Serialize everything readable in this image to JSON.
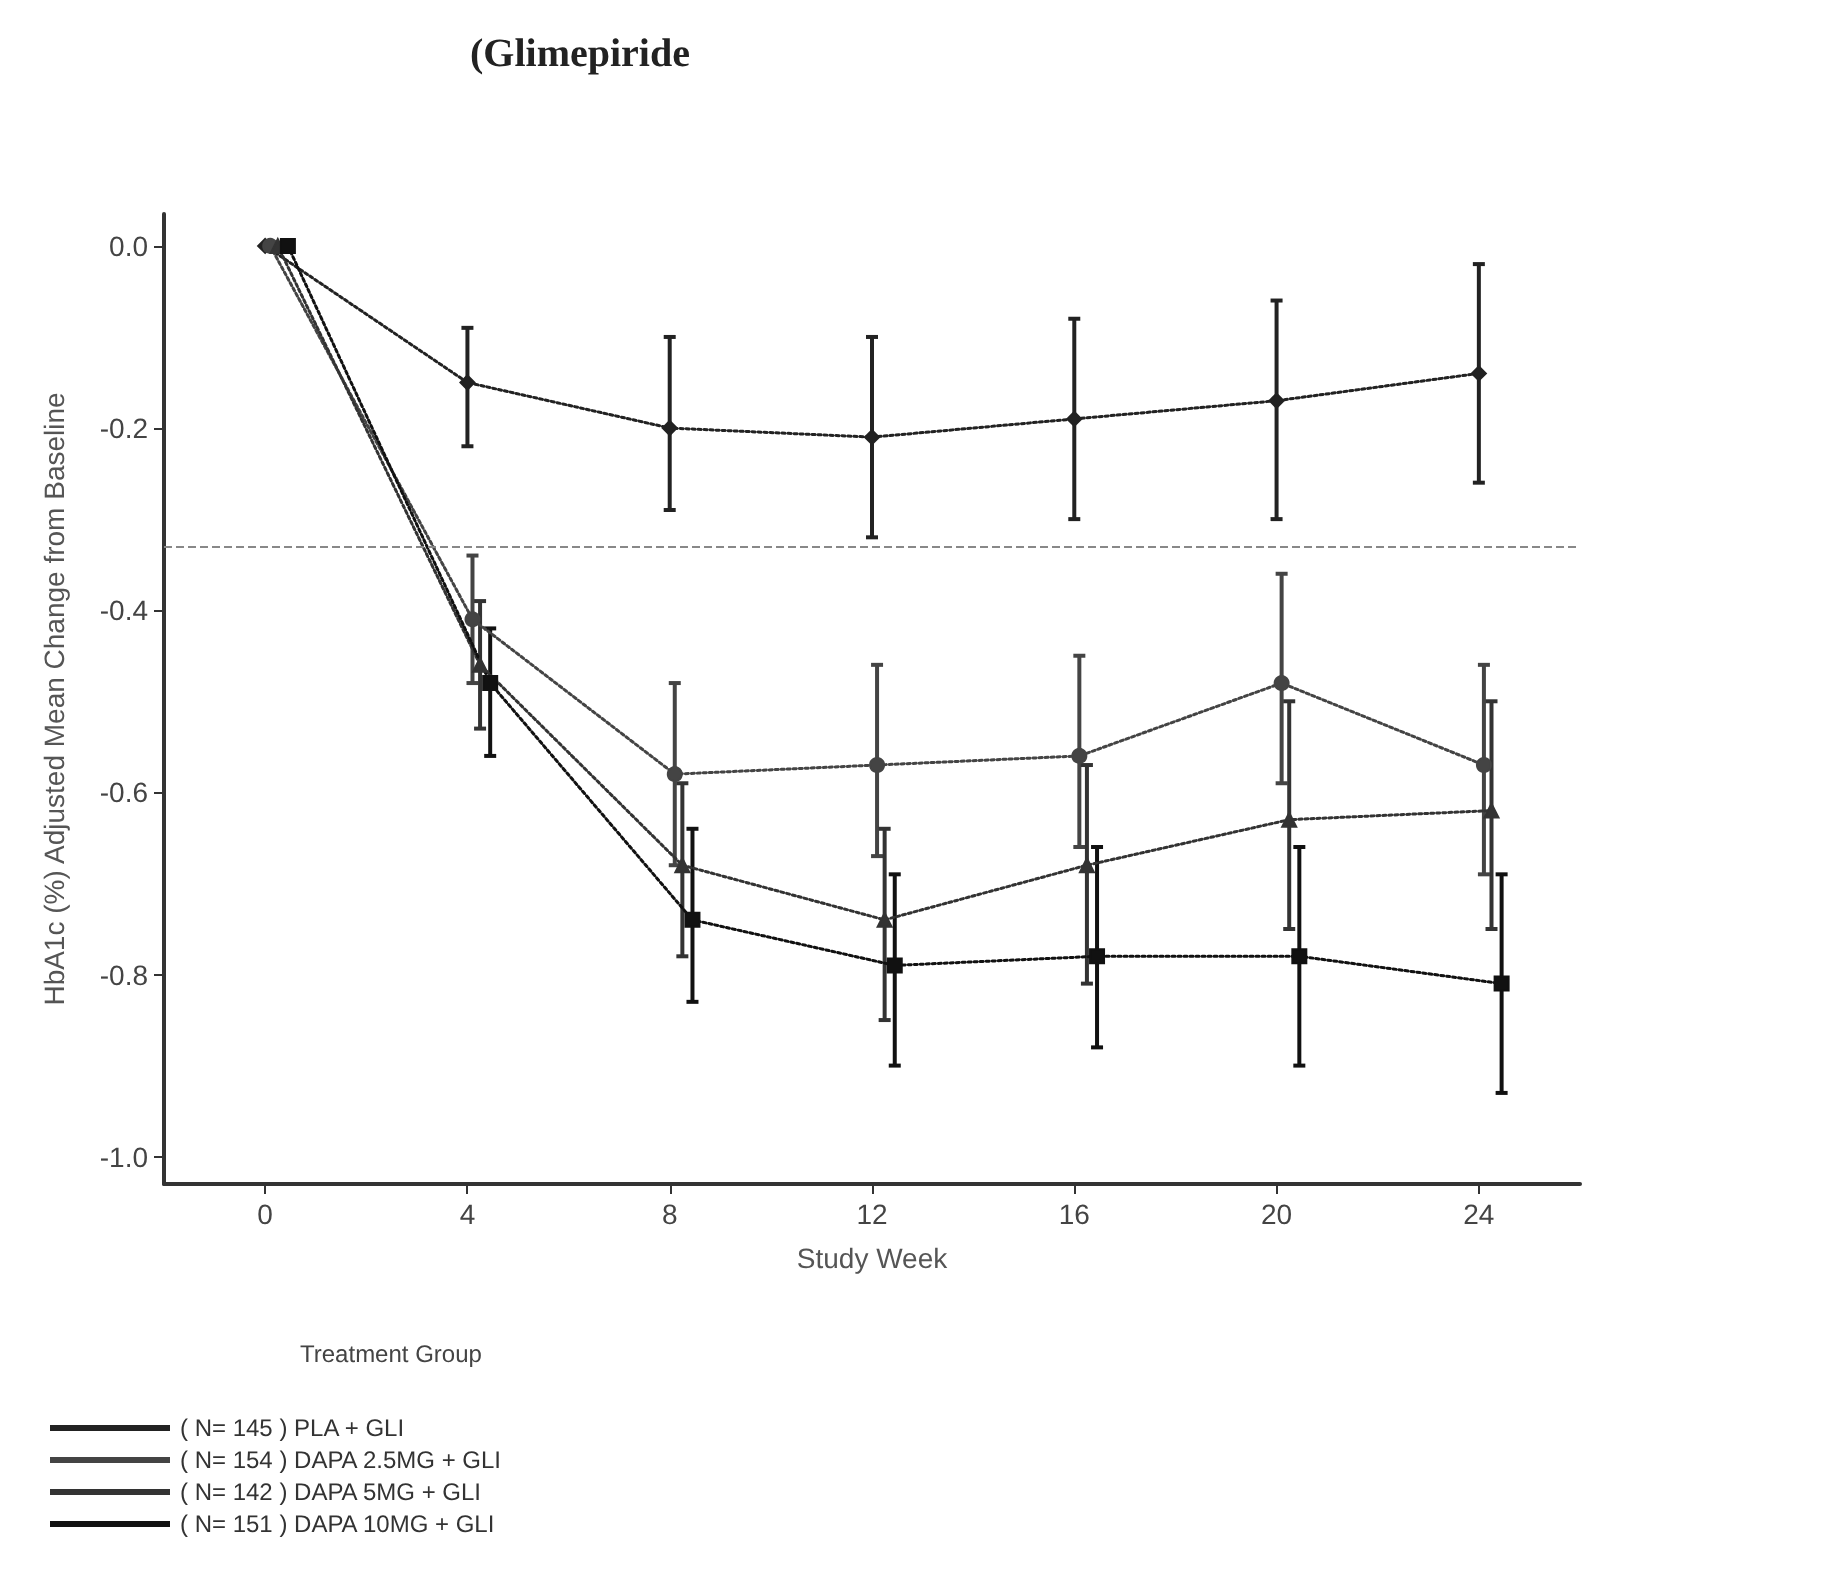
{
  "chart_data": {
    "type": "line",
    "title": "(Glimepiride",
    "xlabel": "Study Week",
    "ylabel": "HbA1c (%) Adjusted Mean Change from Baseline",
    "legend_title": "Treatment Group",
    "legend": "bottom left",
    "grid": false,
    "line_style": "dotted",
    "xlim": [
      -2,
      26
    ],
    "xticks": [
      0,
      4,
      8,
      12,
      16,
      20,
      24
    ],
    "ylim": [
      -1.03,
      0.035
    ],
    "yticks": [
      {
        "value": 0,
        "label": "0.0"
      },
      {
        "value": -0.2,
        "label": "-0.2"
      },
      {
        "value": -0.4,
        "label": "-0.4"
      },
      {
        "value": -0.6,
        "label": "-0.6"
      },
      {
        "value": -0.8,
        "label": "-0.8"
      },
      {
        "value": -1,
        "label": "-1.0"
      }
    ],
    "ref_lines": [
      {
        "axis": "y",
        "value": -0.33,
        "color": "#888888",
        "line_style": "dashed"
      }
    ],
    "series": [
      {
        "name": "( N= 145 ) PLA + GLI",
        "color": "#222222",
        "marker": "diamond",
        "x": [
          0,
          4,
          8,
          12,
          16,
          20,
          24
        ],
        "values": [
          0,
          -0.15,
          -0.2,
          -0.21,
          -0.19,
          -0.17,
          -0.14
        ],
        "errors": [
          null,
          [
            -0.22,
            -0.09
          ],
          [
            -0.29,
            -0.1
          ],
          [
            -0.32,
            -0.1
          ],
          [
            -0.3,
            -0.08
          ],
          [
            -0.3,
            -0.06
          ],
          [
            -0.26,
            -0.02
          ]
        ]
      },
      {
        "name": "( N= 154 ) DAPA 2.5MG + GLI",
        "color": "#444444",
        "marker": "circle",
        "x": [
          0.1,
          4.1,
          8.1,
          12.1,
          16.1,
          20.1,
          24.1
        ],
        "values": [
          0,
          -0.41,
          -0.58,
          -0.57,
          -0.56,
          -0.48,
          -0.57
        ],
        "errors": [
          null,
          [
            -0.48,
            -0.34
          ],
          [
            -0.68,
            -0.48
          ],
          [
            -0.67,
            -0.46
          ],
          [
            -0.66,
            -0.45
          ],
          [
            -0.59,
            -0.36
          ],
          [
            -0.69,
            -0.46
          ]
        ]
      },
      {
        "name": "( N= 142 ) DAPA 5MG + GLI",
        "color": "#333333",
        "marker": "triangle",
        "x": [
          0.25,
          4.25,
          8.25,
          12.25,
          16.25,
          20.25,
          24.25
        ],
        "values": [
          0,
          -0.46,
          -0.68,
          -0.74,
          -0.68,
          -0.63,
          -0.62
        ],
        "errors": [
          null,
          [
            -0.53,
            -0.39
          ],
          [
            -0.78,
            -0.59
          ],
          [
            -0.85,
            -0.64
          ],
          [
            -0.81,
            -0.57
          ],
          [
            -0.75,
            -0.5
          ],
          [
            -0.75,
            -0.5
          ]
        ]
      },
      {
        "name": "( N= 151 ) DAPA 10MG + GLI",
        "color": "#111111",
        "marker": "square",
        "x": [
          0.45,
          4.45,
          8.45,
          12.45,
          16.45,
          20.45,
          24.45
        ],
        "values": [
          0,
          -0.48,
          -0.74,
          -0.79,
          -0.78,
          -0.78,
          -0.81
        ],
        "errors": [
          null,
          [
            -0.56,
            -0.42
          ],
          [
            -0.83,
            -0.64
          ],
          [
            -0.9,
            -0.69
          ],
          [
            -0.88,
            -0.66
          ],
          [
            -0.9,
            -0.66
          ],
          [
            -0.93,
            -0.69
          ]
        ]
      }
    ]
  }
}
